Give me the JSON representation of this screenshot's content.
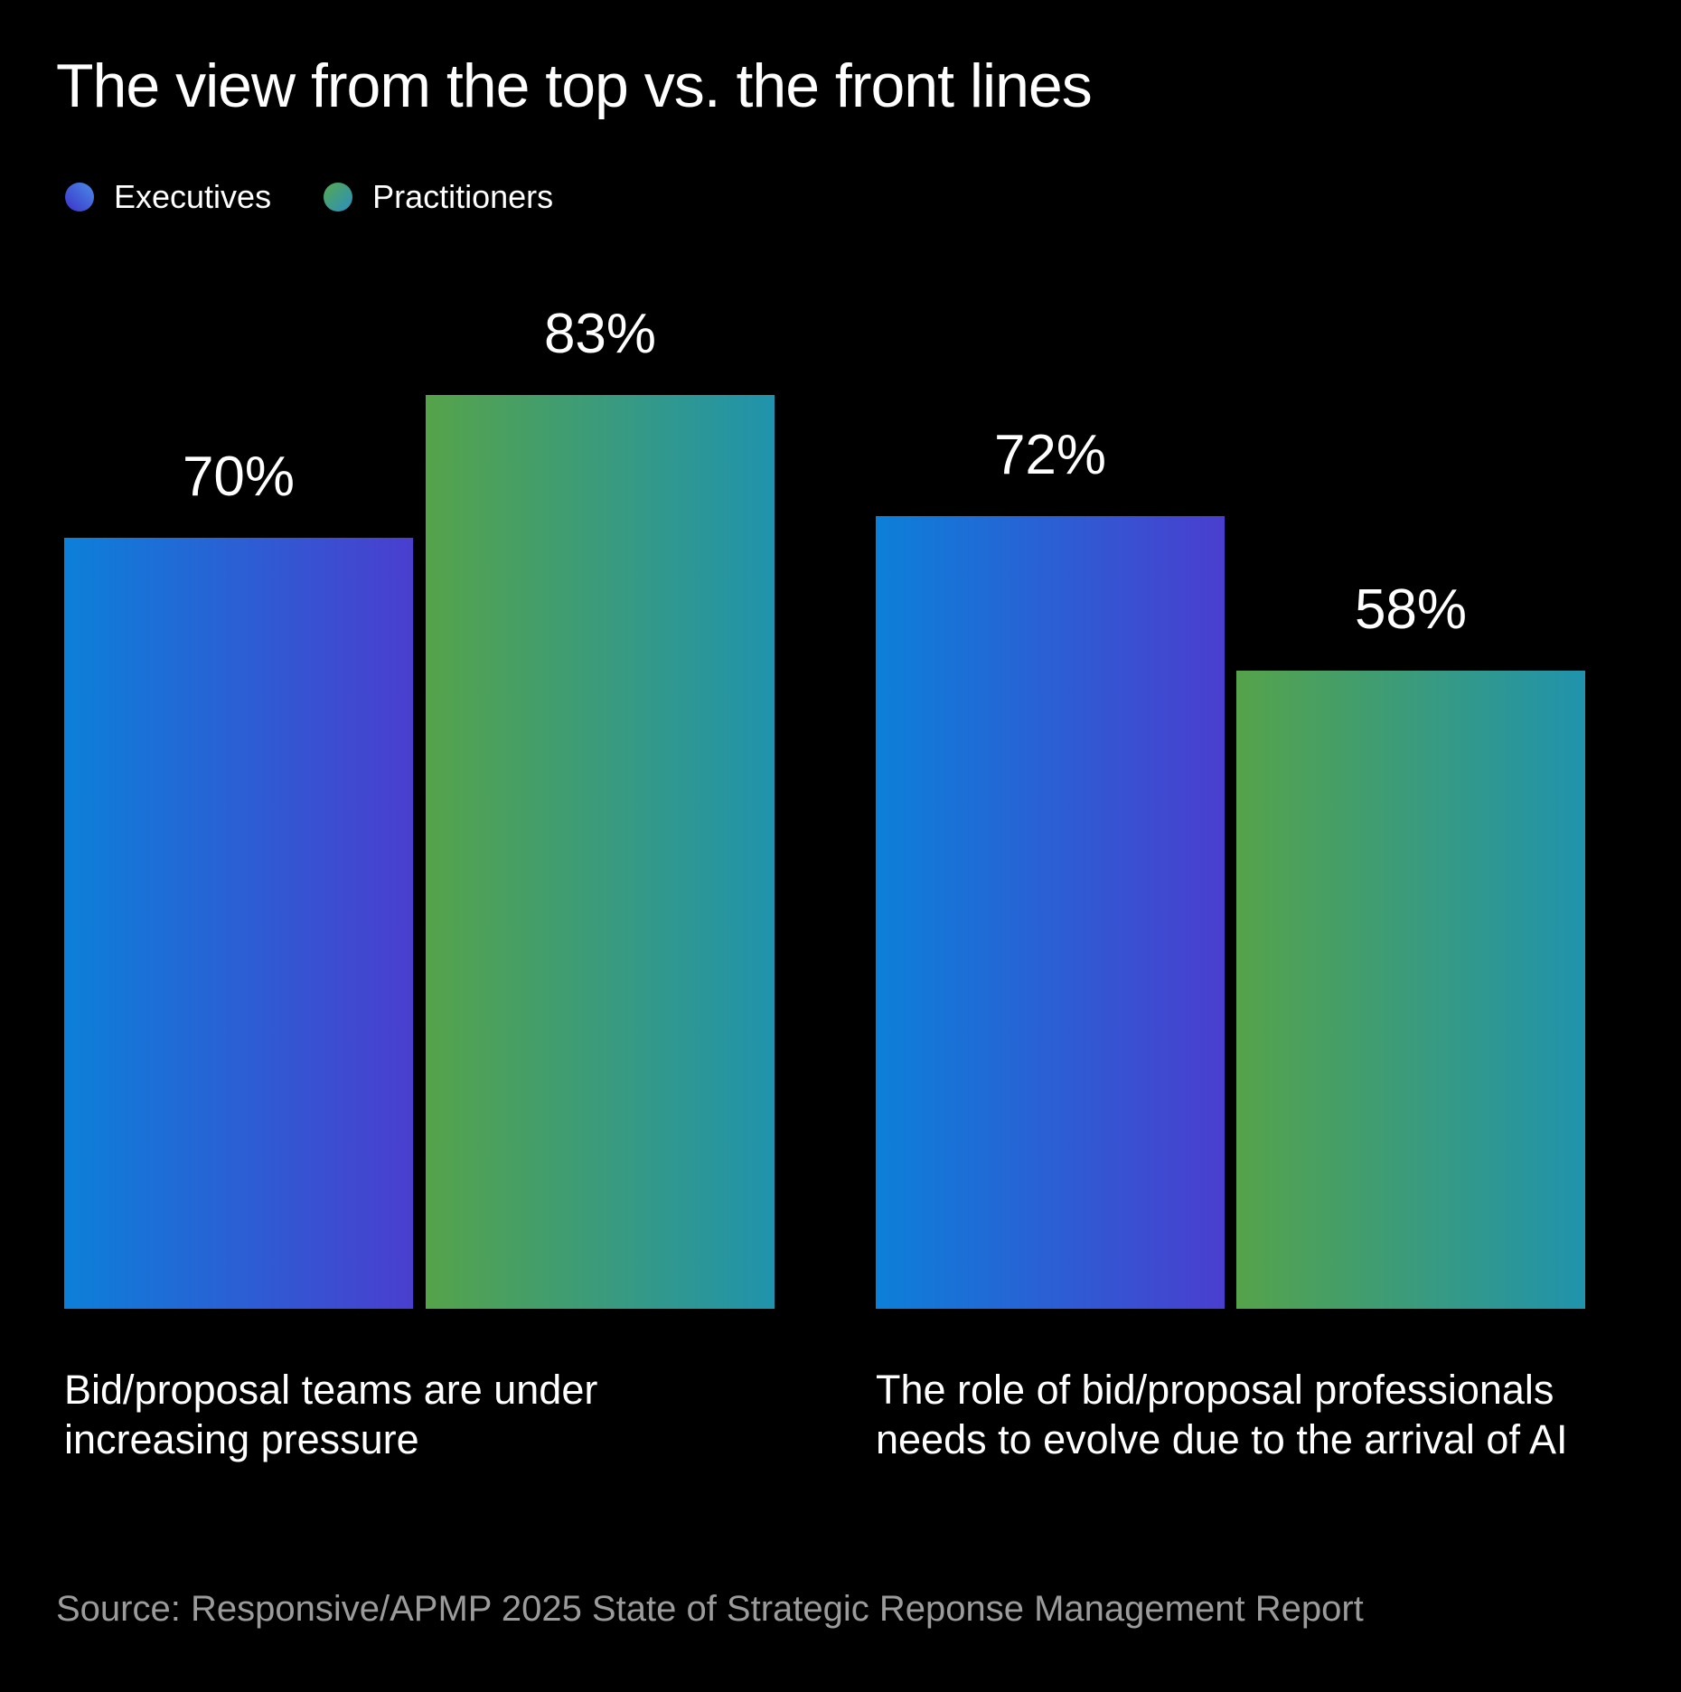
{
  "title": "The view from the top vs. the front lines",
  "legend": {
    "items": [
      {
        "label": "Executives",
        "dot_gradient": [
          "#4b8ce8",
          "#3a32c8",
          "225deg"
        ]
      },
      {
        "label": "Practitioners",
        "dot_gradient": [
          "#55aa4e",
          "#2b8ec2",
          "135deg"
        ]
      }
    ]
  },
  "chart_data": {
    "type": "bar",
    "categories": [
      "Bid/proposal teams are under increasing pressure",
      "The role of bid/proposal professionals needs to evolve due to the arrival of AI"
    ],
    "series": [
      {
        "name": "Executives",
        "values": [
          70,
          72
        ],
        "gradient": [
          "#0c80d9",
          "#4a3ecf"
        ]
      },
      {
        "name": "Practitioners",
        "values": [
          83,
          58
        ],
        "gradient": [
          "#55a34a",
          "#2093ad"
        ]
      }
    ],
    "value_labels": [
      [
        "70%",
        "83%"
      ],
      [
        "72%",
        "58%"
      ]
    ],
    "value_suffix": "%",
    "ylim": [
      0,
      100
    ],
    "grid": false,
    "legend_position": "top-left",
    "background": "#000000",
    "text_color": "#ffffff"
  },
  "source": "Source: Responsive/APMP 2025 State of Strategic Reponse Management Report"
}
